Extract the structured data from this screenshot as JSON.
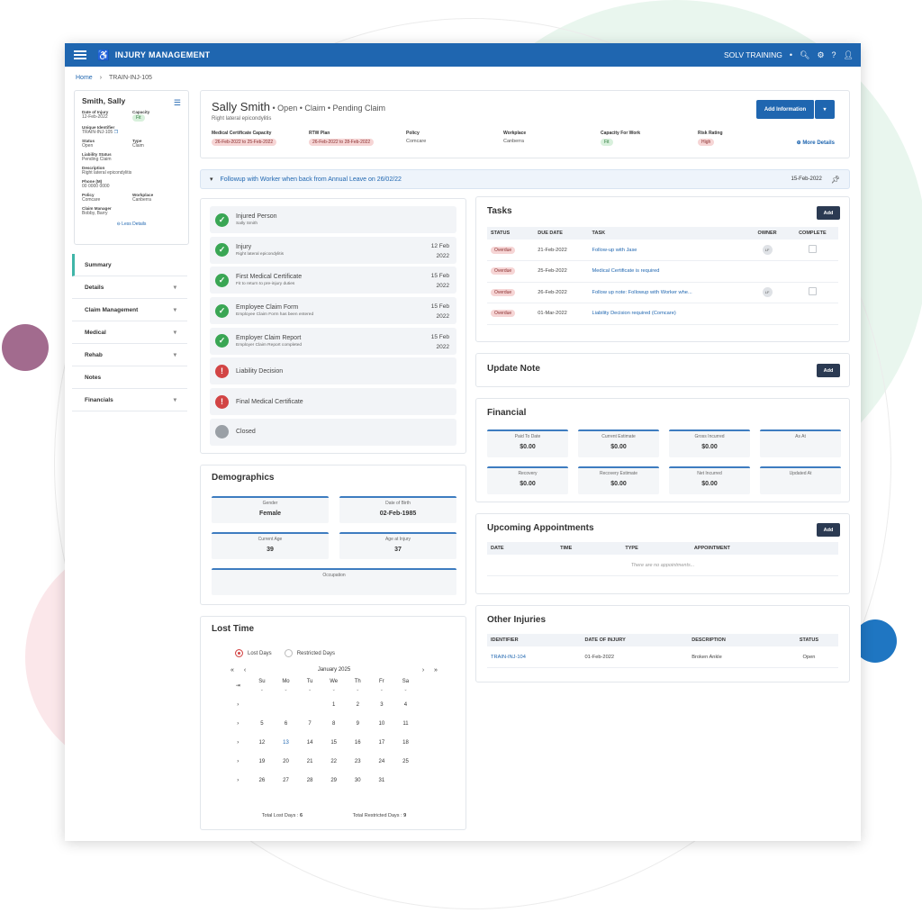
{
  "app": {
    "title_bold": "INJURY",
    "title_rest": " MANAGEMENT",
    "org": "SOLV TRAINING"
  },
  "breadcrumb": {
    "home": "Home",
    "current": "TRAIN-INJ-105"
  },
  "summary": {
    "name": "Smith, Sally",
    "date_of_injury_label": "Date of Injury",
    "date_of_injury": "12-Feb-2022",
    "capacity_label": "Capacity",
    "capacity": "Fit",
    "uid_label": "Unique Identifier",
    "uid": "TRAIN-INJ-105",
    "status_label": "Status",
    "status": "Open",
    "type_label": "Type",
    "type": "Claim",
    "liability_label": "Liability Status",
    "liability": "Pending Claim",
    "desc_label": "Description",
    "desc": "Right lateral epicondylitis",
    "phone_label": "Phone (M)",
    "phone": "00 0000 0000",
    "policy_label": "Policy",
    "policy": "Comcare",
    "workplace_label": "Workplace",
    "workplace": "Canberra",
    "manager_label": "Claim Manager",
    "manager": "Bobby, Barry",
    "less": "Less Details"
  },
  "nav": [
    {
      "label": "Summary",
      "chev": ""
    },
    {
      "label": "Details",
      "chev": "▾"
    },
    {
      "label": "Claim Management",
      "chev": "▾"
    },
    {
      "label": "Medical",
      "chev": "▾"
    },
    {
      "label": "Rehab",
      "chev": "▾"
    },
    {
      "label": "Notes",
      "chev": ""
    },
    {
      "label": "Financials",
      "chev": "▾"
    }
  ],
  "header": {
    "name": "Sally Smith",
    "status": " • Open • Claim • Pending Claim",
    "subtitle": "Right lateral epicondylitis",
    "add_info": "Add Information",
    "more": "More Details",
    "fields": [
      {
        "label": "Medical Certificate Capacity",
        "value": "26-Feb-2022 to 25-Feb-2022",
        "pill": "red"
      },
      {
        "label": "RTW Plan",
        "value": "26-Feb-2022 to 28-Feb-2022",
        "pill": "red"
      },
      {
        "label": "Policy",
        "value": "Comcare",
        "pill": ""
      },
      {
        "label": "Workplace",
        "value": "Canberra",
        "pill": ""
      },
      {
        "label": "Capacity For Work",
        "value": "Fit",
        "pill": "green"
      },
      {
        "label": "Risk Rating",
        "value": "High",
        "pill": "red"
      }
    ]
  },
  "followup": {
    "text": "Followup with Worker when back from Annual Leave on 26/02/22",
    "date": "15-Feb-2022"
  },
  "steps": [
    {
      "title": "Injured Person",
      "sub": "Sally Smith",
      "state": "ok",
      "d1": "",
      "d2": ""
    },
    {
      "title": "Injury",
      "sub": "Right lateral epicondylitis",
      "state": "ok",
      "d1": "12 Feb",
      "d2": "2022"
    },
    {
      "title": "First Medical Certificate",
      "sub": "Fit to return to pre-injury duties",
      "state": "ok",
      "d1": "15 Feb",
      "d2": "2022"
    },
    {
      "title": "Employee Claim Form",
      "sub": "Employee Claim Form has been entered",
      "state": "ok",
      "d1": "15 Feb",
      "d2": "2022"
    },
    {
      "title": "Employer Claim Report",
      "sub": "Employer Claim Report completed",
      "state": "ok",
      "d1": "15 Feb",
      "d2": "2022"
    },
    {
      "title": "Liability Decision",
      "sub": "",
      "state": "bad",
      "d1": "",
      "d2": ""
    },
    {
      "title": "Final Medical Certificate",
      "sub": "",
      "state": "bad",
      "d1": "",
      "d2": ""
    },
    {
      "title": "Closed",
      "sub": "",
      "state": "gray",
      "d1": "",
      "d2": ""
    }
  ],
  "demographics": {
    "title": "Demographics",
    "gender_label": "Gender",
    "gender": "Female",
    "dob_label": "Date of Birth",
    "dob": "02-Feb-1985",
    "age_label": "Current Age",
    "age": "39",
    "age_inj_label": "Age at Injury",
    "age_inj": "37",
    "occ_label": "Occupation",
    "occ": ""
  },
  "lost_time": {
    "title": "Lost Time",
    "opt1": "Lost Days",
    "opt2": "Restricted Days",
    "month": "January 2025",
    "dows": [
      "Su",
      "Mo",
      "Tu",
      "We",
      "Th",
      "Fr",
      "Sa"
    ],
    "weeks": [
      [
        "",
        "",
        "",
        "1",
        "2",
        "3",
        "4"
      ],
      [
        "5",
        "6",
        "7",
        "8",
        "9",
        "10",
        "11"
      ],
      [
        "12",
        "13",
        "14",
        "15",
        "16",
        "17",
        "18"
      ],
      [
        "19",
        "20",
        "21",
        "22",
        "23",
        "24",
        "25"
      ],
      [
        "26",
        "27",
        "28",
        "29",
        "30",
        "31",
        ""
      ]
    ],
    "total_lost_label": "Total Lost Days : ",
    "total_lost": "6",
    "total_restricted_label": "Total Restricted Days : ",
    "total_restricted": "9"
  },
  "tasks": {
    "title": "Tasks",
    "add": "Add",
    "cols": [
      "STATUS",
      "DUE DATE",
      "TASK",
      "OWNER",
      "COMPLETE"
    ],
    "rows": [
      {
        "status": "Overdue",
        "due": "21-Feb-2022",
        "task": "Follow-up with Jase",
        "owner": "LF",
        "complete": true
      },
      {
        "status": "Overdue",
        "due": "25-Feb-2022",
        "task": "Medical Certificate is required",
        "owner": "",
        "complete": false
      },
      {
        "status": "Overdue",
        "due": "26-Feb-2022",
        "task": "Follow up note: Followup with Worker whe...",
        "owner": "LF",
        "complete": true
      },
      {
        "status": "Overdue",
        "due": "01-Mar-2022",
        "task": "Liability Decision required (Comcare)",
        "owner": "",
        "complete": false
      }
    ]
  },
  "update_note": {
    "title": "Update Note",
    "add": "Add"
  },
  "financial": {
    "title": "Financial",
    "boxes": [
      {
        "label": "Paid To Date",
        "value": "$0.00"
      },
      {
        "label": "Current Estimate",
        "value": "$0.00"
      },
      {
        "label": "Gross Incurred",
        "value": "$0.00"
      },
      {
        "label": "As At",
        "value": ""
      },
      {
        "label": "Recovery",
        "value": "$0.00"
      },
      {
        "label": "Recovery Estimate",
        "value": "$0.00"
      },
      {
        "label": "Net Incurred",
        "value": "$0.00"
      },
      {
        "label": "Updated At",
        "value": ""
      }
    ]
  },
  "appointments": {
    "title": "Upcoming Appointments",
    "add": "Add",
    "cols": [
      "DATE",
      "TIME",
      "TYPE",
      "APPOINTMENT"
    ],
    "empty": "There are no appointments..."
  },
  "other_injuries": {
    "title": "Other Injuries",
    "cols": [
      "IDENTIFIER",
      "DATE OF INJURY",
      "DESCRIPTION",
      "STATUS"
    ],
    "rows": [
      {
        "id": "TRAIN-INJ-104",
        "date": "01-Feb-2022",
        "desc": "Broken Ankle",
        "status": "Open"
      }
    ]
  },
  "colors": {
    "primary": "#1f66b0",
    "accent": "#3fb5a8",
    "ok": "#3aa654",
    "bad": "#d24545"
  }
}
